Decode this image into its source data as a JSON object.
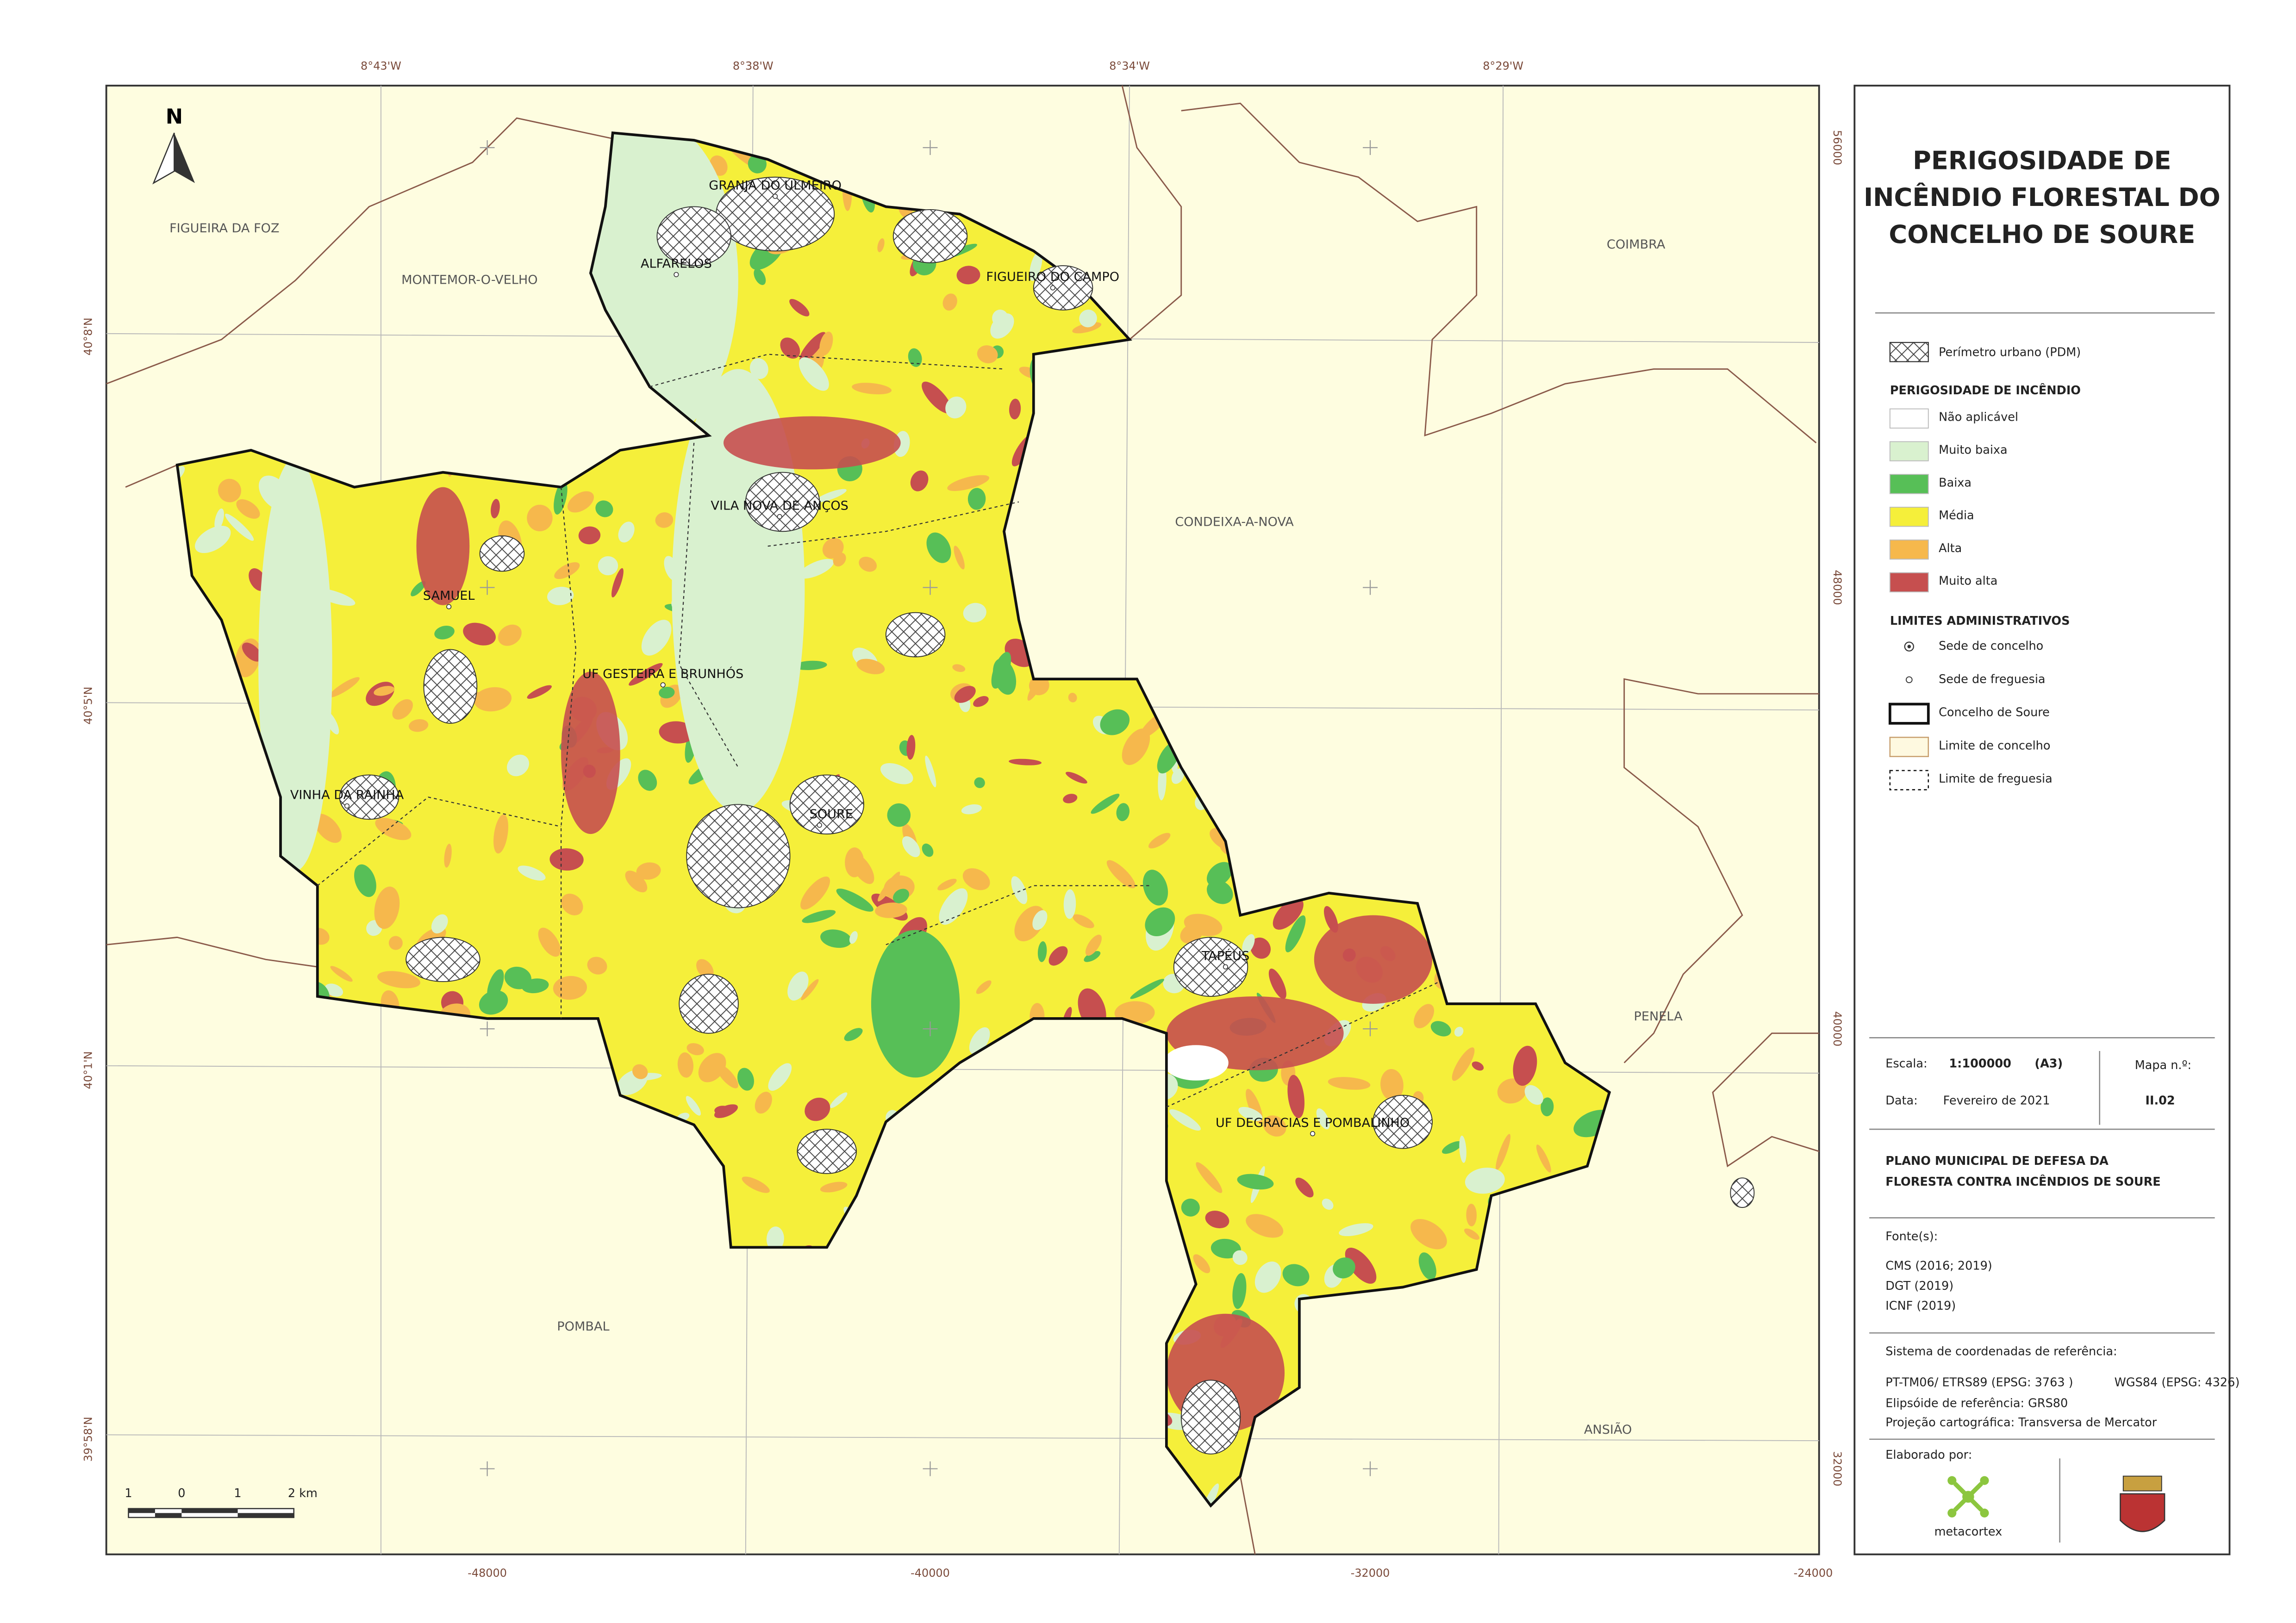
{
  "map": {
    "north": "N",
    "lon_labels": [
      "8°43'W",
      "8°38'W",
      "8°34'W",
      "8°29'W"
    ],
    "lat_labels": [
      "40°8'N",
      "40°5'N",
      "40°1'N",
      "39°58'N"
    ],
    "x_ticks": [
      -48000,
      -40000,
      -32000,
      -24000
    ],
    "y_ticks": [
      56000,
      48000,
      40000,
      32000
    ],
    "municipalities": [
      "FIGUEIRA DA FOZ",
      "MONTEMOR-O-VELHO",
      "COIMBRA",
      "CONDEIXA-A-NOVA",
      "PENELA",
      "POMBAL",
      "ANSIÃO"
    ],
    "parishes": [
      "GRANJA DO ULMEIRO",
      "ALFARELOS",
      "FIGUEIRO DO CAMPO",
      "VILA NOVA DE ANÇOS",
      "SAMUEL",
      "UF GESTEIRA E BRUNHÓS",
      "VINHA DA RAINHA",
      "SOURE",
      "TAPÉUS",
      "UF DEGRACIAS E POMBALINHO"
    ],
    "scale_bar": [
      "1",
      "0",
      "1",
      "2 km"
    ]
  },
  "panel": {
    "title": [
      "PERIGOSIDADE DE",
      "INCÊNDIO FLORESTAL DO",
      "CONCELHO DE SOURE"
    ],
    "urban_perimeter": "Perímetro urbano (PDM)",
    "hazard_heading": "PERIGOSIDADE DE INCÊNDIO",
    "hazard_classes": [
      {
        "label": "Não aplicável",
        "color": "#ffffff"
      },
      {
        "label": "Muito baixa",
        "color": "#d9f1cf"
      },
      {
        "label": "Baixa",
        "color": "#57bf57"
      },
      {
        "label": "Média",
        "color": "#f5ef3a"
      },
      {
        "label": "Alta",
        "color": "#f6b84c"
      },
      {
        "label": "Muito alta",
        "color": "#c64f4f"
      }
    ],
    "admin_heading": "LIMITES ADMINISTRATIVOS",
    "admin_limits": [
      "Sede de concelho",
      "Sede de freguesia",
      "Concelho de Soure",
      "Limite de concelho",
      "Limite de freguesia"
    ],
    "scale_label": "Escala:",
    "scale": "1:100000",
    "paper": "(A3)",
    "map_number_label": "Mapa n.º:",
    "map_number": "II.02",
    "date_label": "Data:",
    "date": "Fevereiro de 2021",
    "plan": [
      "PLANO MUNICIPAL DE DEFESA DA",
      "FLORESTA CONTRA INCÊNDIOS DE SOURE"
    ],
    "sources_label": "Fonte(s):",
    "sources": [
      "CMS (2016; 2019)",
      "DGT (2019)",
      "ICNF (2019)"
    ],
    "crs_label": "Sistema de coordenadas de referência:",
    "crs": "PT-TM06/ ETRS89 (EPSG: 3763 )",
    "crs_geo": "WGS84 (EPSG: 4326)",
    "ellipsoid": "Elipsóide de referência: GRS80",
    "projection": "Projeção cartográfica: Transversa de Mercator",
    "made_by": "Elaborado por:",
    "company": "metacortex"
  }
}
